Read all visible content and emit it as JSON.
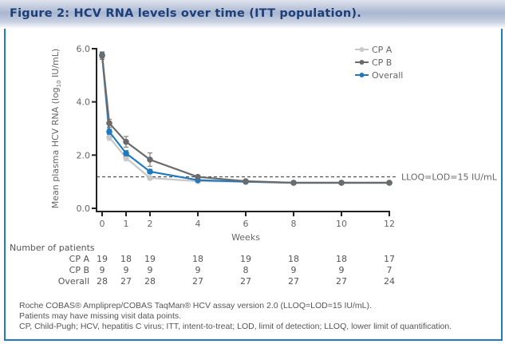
{
  "figure": {
    "title": "Figure 2: HCV RNA levels over time (ITT population)."
  },
  "chart_data": {
    "type": "line",
    "title": "Figure 2: HCV RNA levels over time (ITT population).",
    "xlabel": "Weeks",
    "ylabel_main": "Mean plasma HCV RNA (log",
    "ylabel_sub": "10",
    "ylabel_end": " IU/mL)",
    "xlim": [
      0,
      12
    ],
    "ylim": [
      0,
      6
    ],
    "x_ticks": [
      0,
      1,
      2,
      4,
      6,
      8,
      10,
      12
    ],
    "y_ticks": [
      0,
      2,
      4,
      6
    ],
    "y_tick_labels": [
      "0.0",
      "2.0",
      "4.0",
      "6.0"
    ],
    "x": [
      0,
      0.3,
      1,
      2,
      4,
      6,
      8,
      10,
      12
    ],
    "series": [
      {
        "name": "CP A",
        "color": "#c8c8c8",
        "values": [
          5.75,
          2.67,
          1.9,
          1.14,
          1.02,
          1.0,
          0.96,
          0.96,
          0.96
        ],
        "err": [
          0.12,
          0.12,
          0.12,
          0.06,
          0.04,
          0.0,
          0.0,
          0.0,
          0.0
        ]
      },
      {
        "name": "CP B",
        "color": "#6b6b6b",
        "values": [
          5.74,
          3.2,
          2.5,
          1.83,
          1.18,
          1.02,
          0.96,
          0.96,
          0.96
        ],
        "err": [
          0.14,
          0.15,
          0.2,
          0.25,
          0.06,
          0.0,
          0.0,
          0.0,
          0.0
        ]
      },
      {
        "name": "Overall",
        "color": "#1f7ac0",
        "values": [
          5.76,
          2.88,
          2.07,
          1.38,
          1.06,
          1.0,
          0.96,
          0.96,
          0.96
        ],
        "err": [
          0.1,
          0.1,
          0.1,
          0.08,
          0.03,
          0.0,
          0.0,
          0.0,
          0.0
        ]
      }
    ],
    "reference_line": {
      "y": 1.18,
      "label": "LLOQ=LOD=15 IU/mL",
      "style": "dashed"
    },
    "legend": {
      "position": "top-right",
      "entries": [
        "CP A",
        "CP B",
        "Overall"
      ]
    },
    "grid": false
  },
  "patients": {
    "title": "Number of patients",
    "weeks": [
      0,
      1,
      2,
      4,
      6,
      8,
      10,
      12
    ],
    "rows": [
      {
        "label": "CP A",
        "values": [
          "19",
          "18",
          "19",
          "18",
          "19",
          "18",
          "18",
          "17"
        ]
      },
      {
        "label": "CP B",
        "values": [
          "9",
          "9",
          "9",
          "9",
          "8",
          "9",
          "9",
          "7"
        ]
      },
      {
        "label": "Overall",
        "values": [
          "28",
          "27",
          "28",
          "27",
          "27",
          "27",
          "27",
          "24"
        ]
      }
    ]
  },
  "footnotes": [
    "Roche COBAS® Ampliprep/COBAS TaqMan® HCV assay version 2.0 (LLOQ=LOD=15 IU/mL).",
    "Patients may have missing visit data points.",
    "CP, Child-Pugh; HCV, hepatitis C virus; ITT, intent-to-treat; LOD, limit of detection;  LLOQ, lower limit of quantification."
  ]
}
